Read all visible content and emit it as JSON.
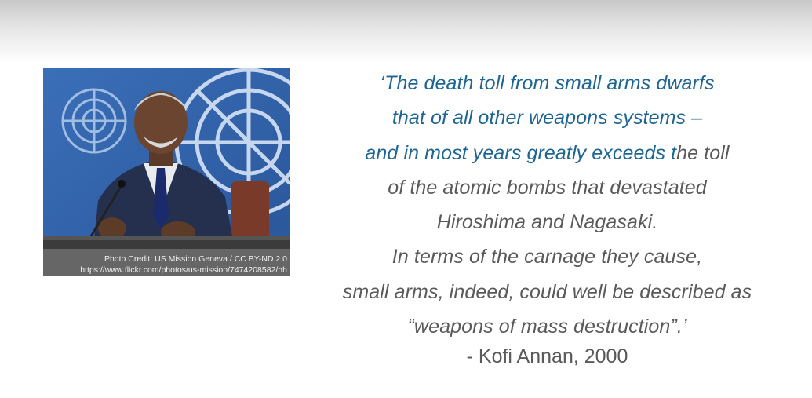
{
  "image": {
    "alt": "Kofi Annan speaking at a press conference",
    "credit_line1": "Photo Credit: US Mission Geneva / CC BY-ND 2.0",
    "credit_line2": "https://www.flickr.com/photos/us-mission/7474208582/hh"
  },
  "quote": {
    "line1": "‘The death toll from small arms dwarfs",
    "line2": "that of all other weapons systems –",
    "line3_blue": "and in most years greatly exceeds t",
    "line3_rest": "he toll",
    "line4": "of the atomic bombs that devastated",
    "line5": "Hiroshima and Nagasaki.",
    "line6": "In terms of the carnage they cause,",
    "line7": "small arms, indeed, could well be described as",
    "line8": "“weapons of mass destruction”.’"
  },
  "attribution": "- Kofi Annan, 2000",
  "colors": {
    "quote_blue": "#1d6592",
    "quote_gray": "#5a5a5a"
  }
}
